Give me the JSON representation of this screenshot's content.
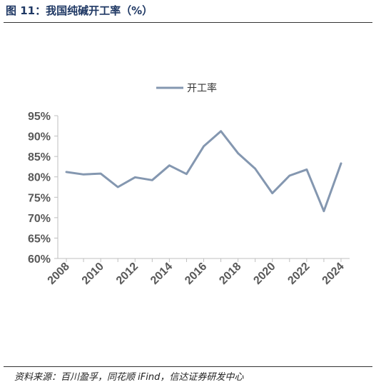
{
  "figure": {
    "title": "图 11：我国纯碱开工率（%）",
    "source": "资料来源：百川盈孚，同花顺 iFind，信达证券研发中心"
  },
  "chart_data": {
    "type": "line",
    "title": "",
    "xlabel": "",
    "ylabel": "",
    "x": [
      2008,
      2009,
      2010,
      2011,
      2012,
      2013,
      2014,
      2015,
      2016,
      2017,
      2018,
      2019,
      2020,
      2021,
      2022,
      2023,
      2024
    ],
    "series": [
      {
        "name": "开工率",
        "color": "#8497b0",
        "values": [
          81.2,
          80.6,
          80.8,
          77.5,
          79.9,
          79.2,
          82.8,
          80.7,
          87.5,
          91.2,
          85.8,
          82.0,
          76.0,
          80.3,
          81.8,
          71.6,
          83.3
        ]
      }
    ],
    "ylim": [
      60,
      95
    ],
    "y_ticks": [
      "60%",
      "65%",
      "70%",
      "75%",
      "80%",
      "85%",
      "90%",
      "95%"
    ],
    "x_ticks": [
      "2008",
      "2010",
      "2012",
      "2014",
      "2016",
      "2018",
      "2020",
      "2022",
      "2024"
    ],
    "legend_position": "top-center",
    "grid": false
  }
}
